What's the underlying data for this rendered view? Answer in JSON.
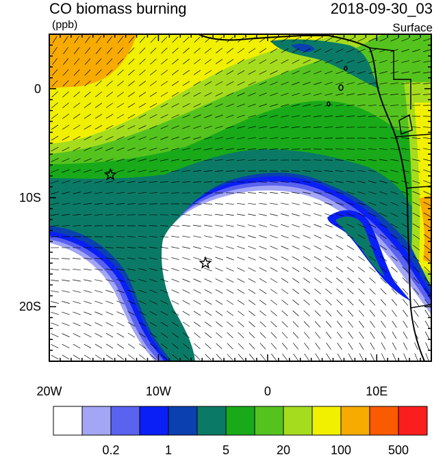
{
  "header": {
    "title": "CO biomass burning",
    "units": "(ppb)",
    "datetime": "2018-09-30_03",
    "level": "Surface"
  },
  "map": {
    "lon_range": [
      -20,
      15
    ],
    "lat_range": [
      -25,
      5
    ],
    "x_ticks": [
      {
        "lon": -20,
        "label": "20W"
      },
      {
        "lon": -10,
        "label": "10W"
      },
      {
        "lon": 0,
        "label": "0"
      },
      {
        "lon": 10,
        "label": "10E"
      }
    ],
    "y_ticks": [
      {
        "lat": 0,
        "label": "0"
      },
      {
        "lat": -10,
        "label": "10S"
      },
      {
        "lat": -20,
        "label": "20S"
      }
    ],
    "markers": [
      {
        "lon": -14.4,
        "lat": -7.9,
        "symbol": "star"
      },
      {
        "lon": -5.7,
        "lat": -16.0,
        "symbol": "star"
      }
    ]
  },
  "colorbar": {
    "colors": [
      "#ffffff",
      "#a3a6f5",
      "#5a62f0",
      "#0a1ff5",
      "#0a40b0",
      "#0a7a66",
      "#19aa19",
      "#55c31e",
      "#a6dc1e",
      "#f0f000",
      "#f7aa00",
      "#fa5a00",
      "#fa1e1e"
    ],
    "labels": [
      {
        "after_box": 1,
        "text": "0.2"
      },
      {
        "after_box": 3,
        "text": "1"
      },
      {
        "after_box": 5,
        "text": "5"
      },
      {
        "after_box": 7,
        "text": "20"
      },
      {
        "after_box": 9,
        "text": "100"
      },
      {
        "after_box": 11,
        "text": "500"
      }
    ]
  }
}
